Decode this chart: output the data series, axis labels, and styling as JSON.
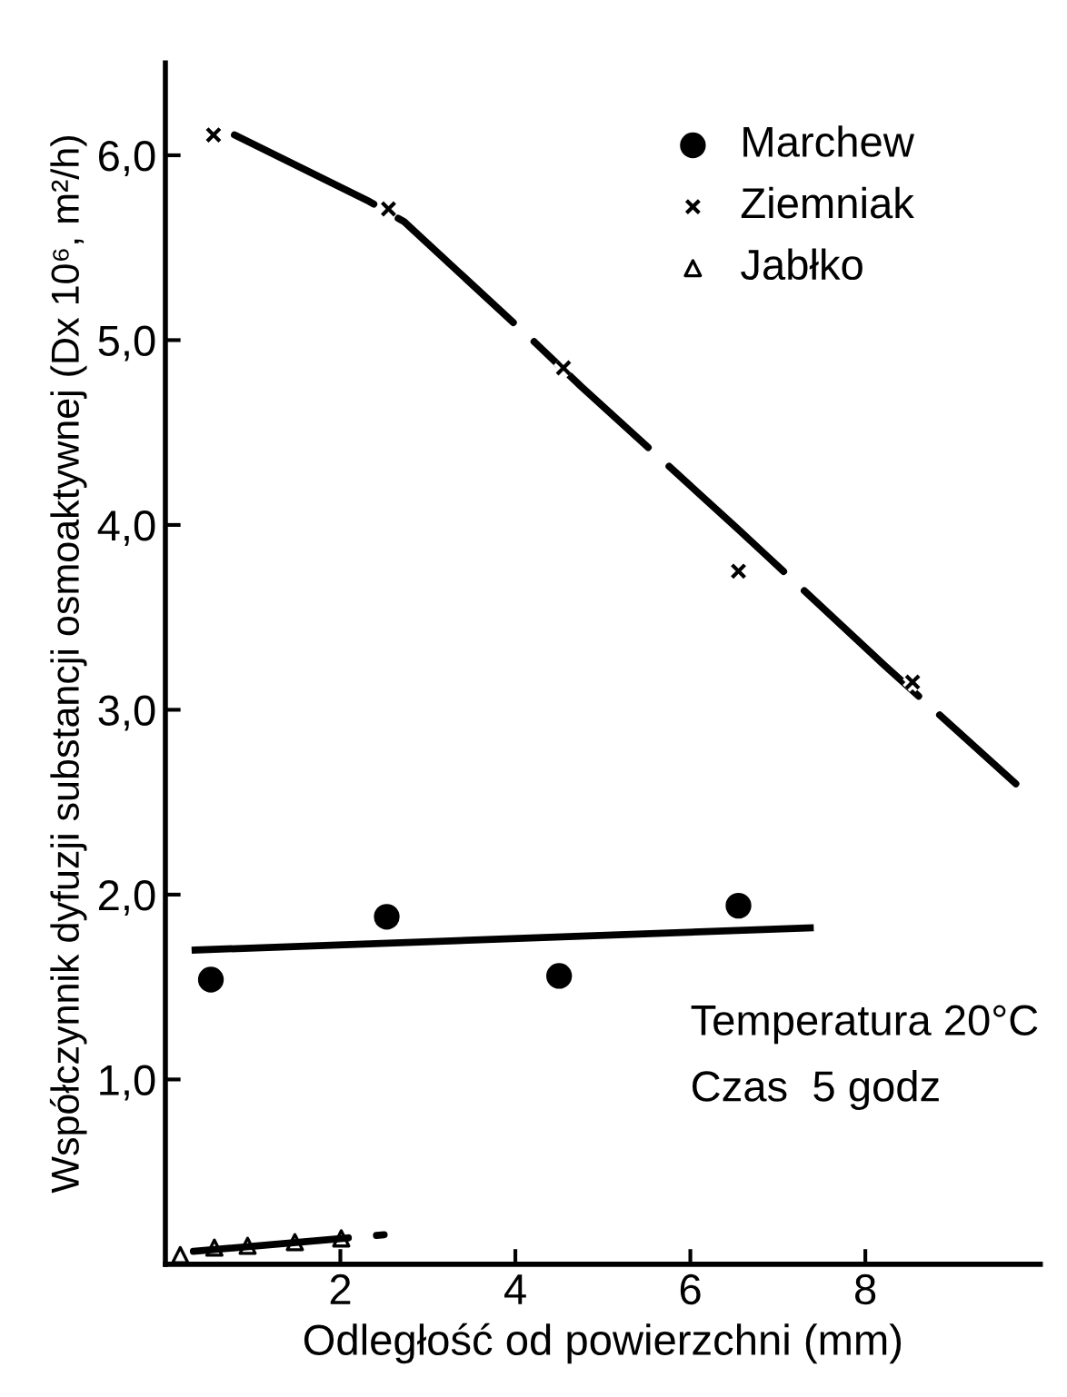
{
  "chart_data": {
    "type": "scatter",
    "xlabel": "Odległość od powierzchni (mm)",
    "ylabel": "Współczynnik dyfuzji substancji osmoaktywnej (Dx 10⁶, m²/h)",
    "xlim": [
      0,
      10
    ],
    "ylim": [
      0,
      6.5
    ],
    "xticks": [
      2,
      4,
      6,
      8
    ],
    "yticks": [
      {
        "value": 1,
        "label": "1,0"
      },
      {
        "value": 2,
        "label": "2,0"
      },
      {
        "value": 3,
        "label": "3,0"
      },
      {
        "value": 4,
        "label": "4,0"
      },
      {
        "value": 5,
        "label": "5,0"
      },
      {
        "value": 6,
        "label": "6,0"
      }
    ],
    "grid": false,
    "legend": "top right",
    "series": [
      {
        "name": "Marchew",
        "color": "#000000",
        "marker": "circle",
        "x": [
          0.52,
          2.53,
          4.5,
          6.55
        ],
        "values": [
          1.54,
          1.88,
          1.56,
          1.94
        ]
      },
      {
        "name": "Ziemniak",
        "color": "#000000",
        "marker": "cross",
        "x": [
          0.55,
          2.55,
          4.55,
          6.55,
          8.54
        ],
        "values": [
          6.11,
          5.71,
          4.85,
          3.75,
          3.15
        ]
      },
      {
        "name": "Jabłko",
        "color": "#000000",
        "marker": "triangle",
        "x": [
          0.17,
          0.56,
          0.94,
          1.48,
          2.01
        ],
        "values": [
          0.05,
          0.09,
          0.1,
          0.12,
          0.14
        ]
      },
      {
        "type": "line",
        "color": "#000000",
        "line_style": "solid",
        "x": [
          0.34,
          7.37
        ],
        "values": [
          1.7,
          1.82
        ]
      },
      {
        "type": "line",
        "color": "#000000",
        "line_style": "dashed",
        "x": [
          0.79,
          2.33,
          2.73,
          4.24,
          4.75,
          6.54,
          6.88,
          8.22,
          9.72
        ],
        "values": [
          6.11,
          5.75,
          5.64,
          4.98,
          4.75,
          3.98,
          3.83,
          3.24,
          2.6
        ]
      },
      {
        "type": "line",
        "color": "#000000",
        "line_style": "dashed",
        "x": [
          0.32,
          2.5
        ],
        "values": [
          0.07,
          0.16
        ]
      }
    ],
    "annotations": [
      "Temperatura 20°C",
      "Czas  5 godz"
    ]
  }
}
